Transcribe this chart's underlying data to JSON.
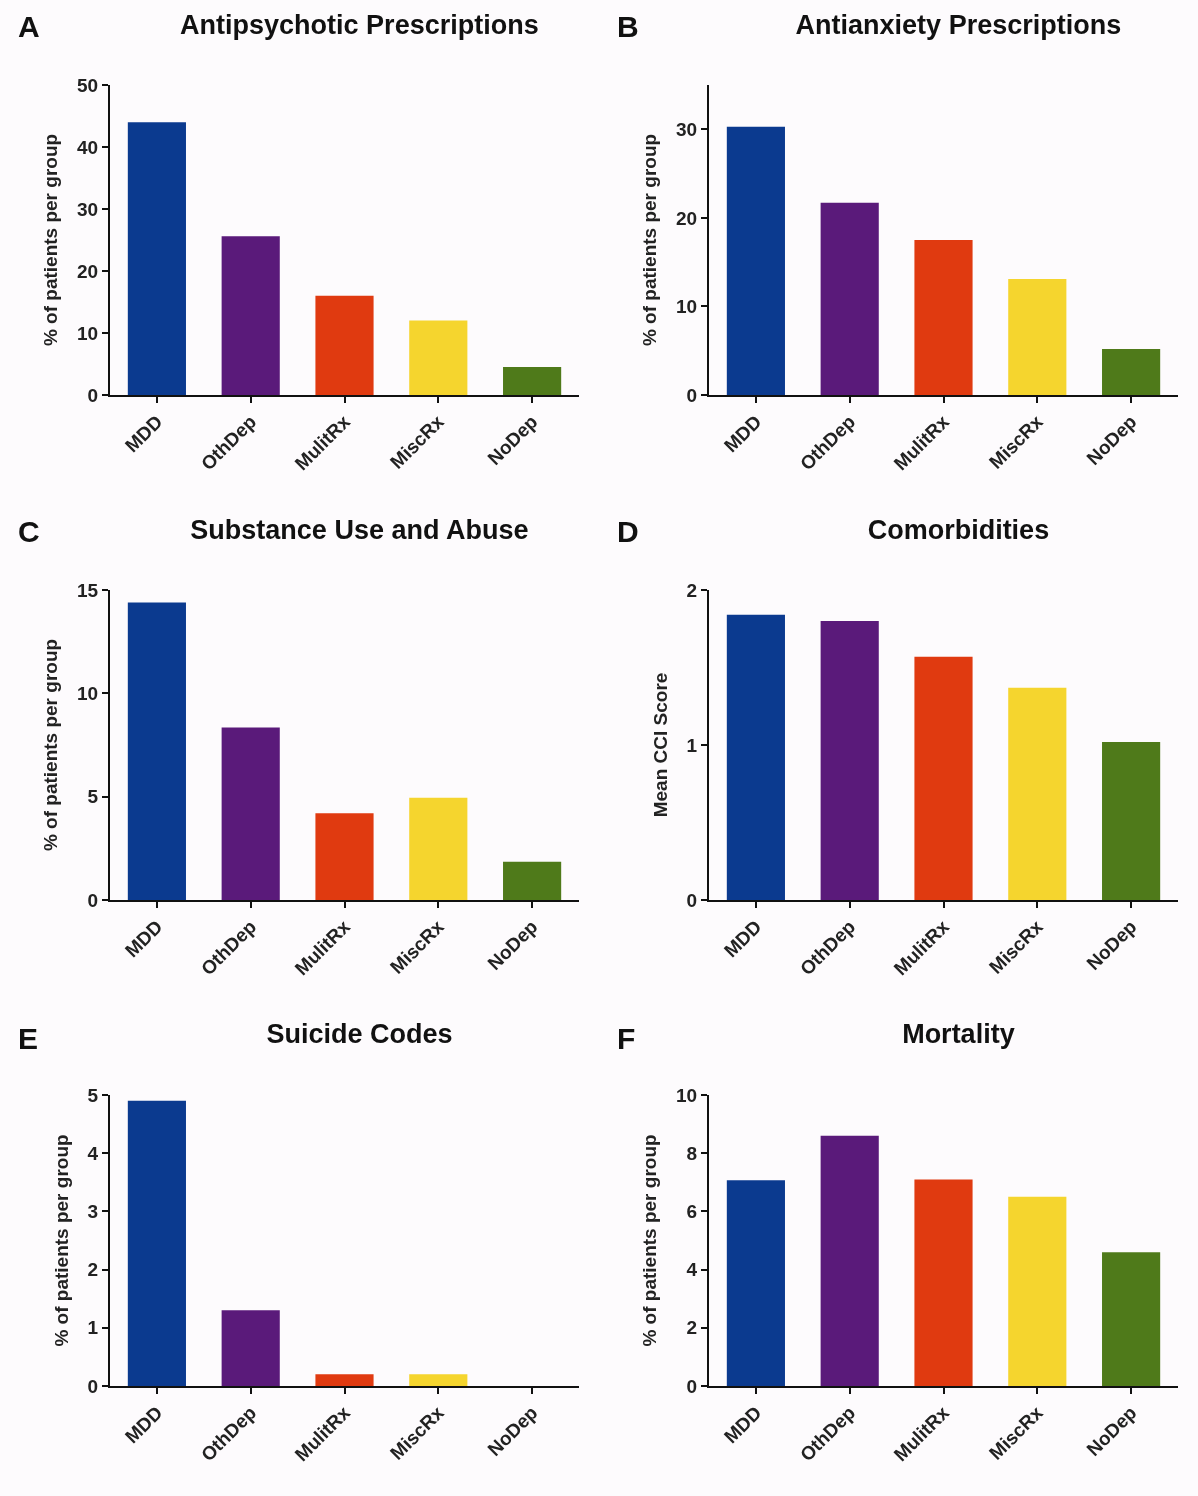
{
  "chart_data": [
    {
      "type": "bar",
      "title": "Antipsychotic Prescriptions",
      "ylabel": "% of patients per group",
      "annotations": [
        "A"
      ],
      "categories": [
        "MDD",
        "OthDep",
        "MulitRx",
        "MiscRx",
        "NoDep"
      ],
      "values": [
        44.0,
        25.6,
        16.0,
        12.0,
        4.5
      ],
      "colors": [
        "#0b3a8f",
        "#5a1a7a",
        "#e03a10",
        "#f5d52e",
        "#4f7a1a"
      ],
      "ylim": [
        0,
        50
      ],
      "yticks": [
        0,
        10,
        20,
        30,
        40,
        50
      ]
    },
    {
      "type": "bar",
      "title": "Antianxiety Prescriptions",
      "ylabel": "% of patients per group",
      "annotations": [
        "B"
      ],
      "categories": [
        "MDD",
        "OthDep",
        "MulitRx",
        "MiscRx",
        "NoDep"
      ],
      "values": [
        30.3,
        21.7,
        17.5,
        13.1,
        5.2
      ],
      "colors": [
        "#0b3a8f",
        "#5a1a7a",
        "#e03a10",
        "#f5d52e",
        "#4f7a1a"
      ],
      "ylim": [
        0,
        35
      ],
      "yticks": [
        0,
        10,
        20,
        30
      ]
    },
    {
      "type": "bar",
      "title": "Substance Use and Abuse",
      "ylabel": "% of patients per group",
      "annotations": [
        "C"
      ],
      "categories": [
        "MDD",
        "OthDep",
        "MulitRx",
        "MiscRx",
        "NoDep"
      ],
      "values": [
        14.4,
        8.35,
        4.2,
        4.95,
        1.85
      ],
      "colors": [
        "#0b3a8f",
        "#5a1a7a",
        "#e03a10",
        "#f5d52e",
        "#4f7a1a"
      ],
      "ylim": [
        0,
        15
      ],
      "yticks": [
        0,
        5,
        10,
        15
      ]
    },
    {
      "type": "bar",
      "title": "Comorbidities",
      "ylabel": "Mean CCI Score",
      "annotations": [
        "D"
      ],
      "categories": [
        "MDD",
        "OthDep",
        "MulitRx",
        "MiscRx",
        "NoDep"
      ],
      "values": [
        1.84,
        1.8,
        1.57,
        1.37,
        1.02
      ],
      "colors": [
        "#0b3a8f",
        "#5a1a7a",
        "#e03a10",
        "#f5d52e",
        "#4f7a1a"
      ],
      "ylim": [
        0,
        2
      ],
      "yticks": [
        0,
        1,
        2
      ]
    },
    {
      "type": "bar",
      "title": "Suicide Codes",
      "ylabel": "% of patients per group",
      "annotations": [
        "E"
      ],
      "categories": [
        "MDD",
        "OthDep",
        "MulitRx",
        "MiscRx",
        "NoDep"
      ],
      "values": [
        4.9,
        1.3,
        0.2,
        0.2,
        0
      ],
      "colors": [
        "#0b3a8f",
        "#5a1a7a",
        "#e03a10",
        "#f5d52e",
        "#4f7a1a"
      ],
      "ylim": [
        0,
        5
      ],
      "yticks": [
        0,
        1,
        2,
        3,
        4,
        5
      ]
    },
    {
      "type": "bar",
      "title": "Mortality",
      "ylabel": "% of patients per group",
      "annotations": [
        "F"
      ],
      "categories": [
        "MDD",
        "OthDep",
        "MulitRx",
        "MiscRx",
        "NoDep"
      ],
      "values": [
        7.07,
        8.6,
        7.1,
        6.5,
        4.6
      ],
      "colors": [
        "#0b3a8f",
        "#5a1a7a",
        "#e03a10",
        "#f5d52e",
        "#4f7a1a"
      ],
      "ylim": [
        0,
        10
      ],
      "yticks": [
        0,
        2,
        4,
        6,
        8,
        10
      ]
    }
  ]
}
